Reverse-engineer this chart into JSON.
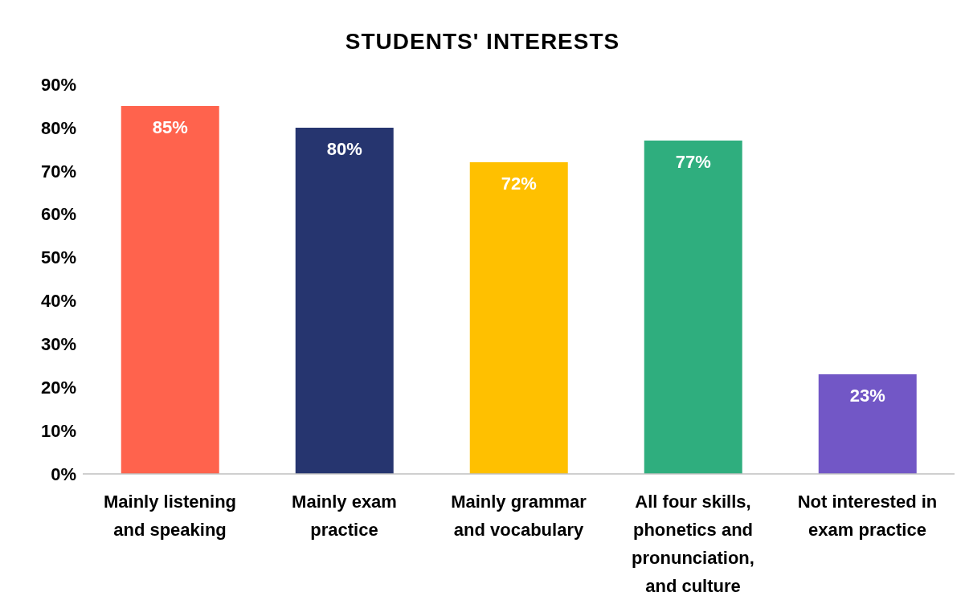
{
  "chart_data": {
    "type": "bar",
    "title": "STUDENTS' INTERESTS",
    "categories": [
      "Mainly listening and speaking",
      "Mainly exam practice",
      "Mainly grammar and vocabulary",
      "All four skills, phonetics and pronunciation, and culture",
      "Not interested in exam practice"
    ],
    "values": [
      85,
      80,
      72,
      77,
      23
    ],
    "colors": [
      "#ff634d",
      "#26356f",
      "#ffc000",
      "#2fae7e",
      "#7257c6"
    ],
    "value_labels": [
      "85%",
      "80%",
      "72%",
      "77%",
      "23%"
    ],
    "ylim": [
      0,
      90
    ],
    "yticks": [
      {
        "value": 0,
        "label": "0%"
      },
      {
        "value": 10,
        "label": "10%"
      },
      {
        "value": 20,
        "label": "20%"
      },
      {
        "value": 30,
        "label": "30%"
      },
      {
        "value": 40,
        "label": "40%"
      },
      {
        "value": 50,
        "label": "50%"
      },
      {
        "value": 60,
        "label": "60%"
      },
      {
        "value": 70,
        "label": "70%"
      },
      {
        "value": 80,
        "label": "80%"
      },
      {
        "value": 90,
        "label": "90%"
      }
    ]
  }
}
